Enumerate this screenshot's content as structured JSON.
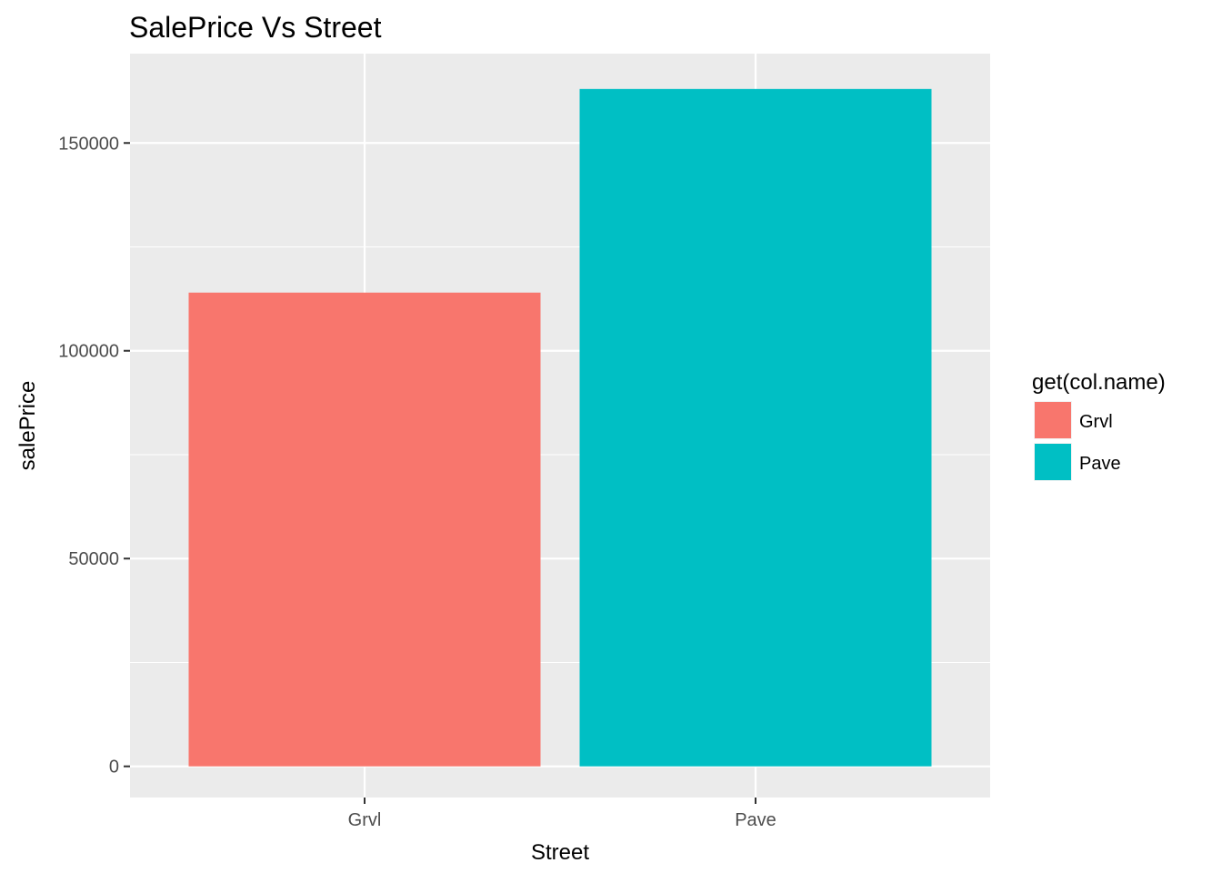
{
  "chart_data": {
    "type": "bar",
    "title": "SalePrice Vs Street",
    "xlabel": "Street",
    "ylabel": "salePrice",
    "categories": [
      "Grvl",
      "Pave"
    ],
    "values": [
      114000,
      163000
    ],
    "colors": [
      "#F8766D",
      "#00BFC4"
    ],
    "ylim": [
      -7500,
      171500
    ],
    "yticks": [
      0,
      50000,
      100000,
      150000
    ],
    "ytick_labels": [
      "0",
      "50000",
      "100000",
      "150000"
    ],
    "grid": true,
    "panel_background": "#EBEBEB",
    "legend": {
      "title": "get(col.name)",
      "position": "right",
      "entries": [
        "Grvl",
        "Pave"
      ]
    }
  }
}
